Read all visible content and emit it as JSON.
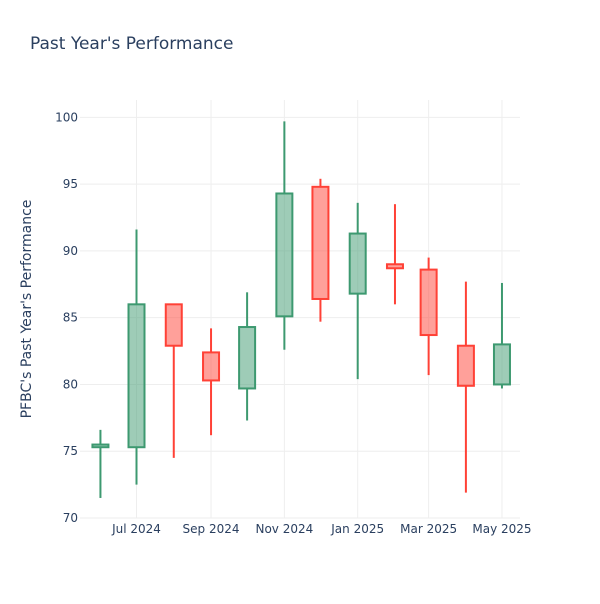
{
  "chart_data": {
    "type": "candlestick",
    "title": "Past Year's Performance",
    "ylabel": "PFBC's Past Year's Performance",
    "xlabel": "",
    "ylim": [
      70,
      101.3
    ],
    "y_ticks": [
      70,
      75,
      80,
      85,
      90,
      95,
      100
    ],
    "x_ticks": [
      {
        "label": "Jul 2024",
        "date": "2024-07-01"
      },
      {
        "label": "Sep 2024",
        "date": "2024-09-01"
      },
      {
        "label": "Nov 2024",
        "date": "2024-11-01"
      },
      {
        "label": "Jan 2025",
        "date": "2025-01-01"
      },
      {
        "label": "Mar 2025",
        "date": "2025-03-01"
      },
      {
        "label": "May 2025",
        "date": "2025-05-01"
      }
    ],
    "x_range": [
      "2024-05-15",
      "2025-05-16"
    ],
    "grid": true,
    "colors": {
      "increasing": "#3d9970",
      "decreasing": "#ff4136",
      "grid": "#eeeeee",
      "text": "#2a3f5f"
    },
    "candles": [
      {
        "date": "2024-06-01",
        "open": 75.3,
        "high": 76.6,
        "low": 71.5,
        "close": 75.5
      },
      {
        "date": "2024-07-01",
        "open": 75.3,
        "high": 91.6,
        "low": 72.5,
        "close": 86.0
      },
      {
        "date": "2024-08-01",
        "open": 86.0,
        "high": 86.0,
        "low": 74.5,
        "close": 82.9
      },
      {
        "date": "2024-09-01",
        "open": 82.4,
        "high": 84.2,
        "low": 76.2,
        "close": 80.3
      },
      {
        "date": "2024-10-01",
        "open": 79.7,
        "high": 86.9,
        "low": 77.3,
        "close": 84.3
      },
      {
        "date": "2024-11-01",
        "open": 85.1,
        "high": 99.7,
        "low": 82.6,
        "close": 94.3
      },
      {
        "date": "2024-12-01",
        "open": 94.8,
        "high": 95.4,
        "low": 84.7,
        "close": 86.4
      },
      {
        "date": "2025-01-01",
        "open": 86.8,
        "high": 93.6,
        "low": 80.4,
        "close": 91.3
      },
      {
        "date": "2025-02-01",
        "open": 89.0,
        "high": 93.5,
        "low": 86.0,
        "close": 88.7
      },
      {
        "date": "2025-03-01",
        "open": 88.6,
        "high": 89.5,
        "low": 80.7,
        "close": 83.7
      },
      {
        "date": "2025-04-01",
        "open": 82.9,
        "high": 87.7,
        "low": 71.9,
        "close": 79.9
      },
      {
        "date": "2025-05-01",
        "open": 80.0,
        "high": 87.6,
        "low": 79.7,
        "close": 83.0
      }
    ]
  }
}
